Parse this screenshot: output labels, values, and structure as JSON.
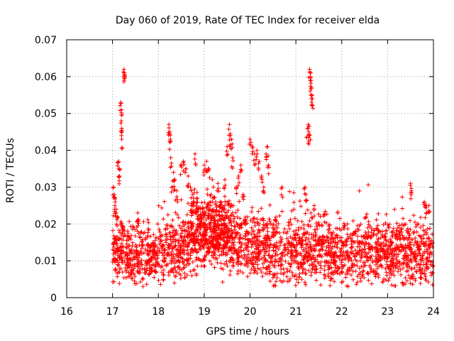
{
  "chart_data": {
    "type": "scatter",
    "title": "Day 060 of 2019, Rate Of TEC Index for receiver elda",
    "xlabel": "GPS time / hours",
    "ylabel": "ROTI / TECUs",
    "xlim": [
      16,
      24
    ],
    "ylim": [
      0,
      0.07
    ],
    "x_ticks": [
      "16",
      "17",
      "18",
      "19",
      "20",
      "21",
      "22",
      "23",
      "24"
    ],
    "y_ticks": [
      "0",
      "0.01",
      "0.02",
      "0.03",
      "0.04",
      "0.05",
      "0.06",
      "0.07"
    ],
    "grid": true,
    "marker": "+",
    "color": "#ff0000",
    "series": [
      {
        "name": "ROTI",
        "baseline_profile": [
          [
            17.0,
            0.013
          ],
          [
            17.3,
            0.012
          ],
          [
            17.5,
            0.011
          ],
          [
            17.8,
            0.011
          ],
          [
            18.0,
            0.012
          ],
          [
            18.3,
            0.013
          ],
          [
            18.6,
            0.014
          ],
          [
            18.9,
            0.016
          ],
          [
            19.1,
            0.017
          ],
          [
            19.4,
            0.016
          ],
          [
            19.7,
            0.015
          ],
          [
            20.0,
            0.014
          ],
          [
            20.4,
            0.013
          ],
          [
            20.8,
            0.012
          ],
          [
            21.2,
            0.013
          ],
          [
            21.6,
            0.013
          ],
          [
            22.0,
            0.012
          ],
          [
            22.4,
            0.012
          ],
          [
            22.8,
            0.013
          ],
          [
            23.2,
            0.012
          ],
          [
            23.6,
            0.012
          ],
          [
            24.0,
            0.011
          ]
        ],
        "spread": 0.006,
        "spikes": [
          [
            17.02,
            0.03
          ],
          [
            17.04,
            0.028
          ],
          [
            17.06,
            0.026
          ],
          [
            17.08,
            0.024
          ],
          [
            17.1,
            0.022
          ],
          [
            17.13,
            0.037
          ],
          [
            17.14,
            0.035
          ],
          [
            17.15,
            0.033
          ],
          [
            17.18,
            0.053
          ],
          [
            17.2,
            0.051
          ],
          [
            17.19,
            0.048
          ],
          [
            17.2,
            0.046
          ],
          [
            17.2,
            0.043
          ],
          [
            17.25,
            0.062
          ],
          [
            17.26,
            0.061
          ],
          [
            17.26,
            0.06
          ],
          [
            17.55,
            0.023
          ],
          [
            17.55,
            0.021
          ],
          [
            18.23,
            0.047
          ],
          [
            18.25,
            0.045
          ],
          [
            18.26,
            0.043
          ],
          [
            18.27,
            0.038
          ],
          [
            18.3,
            0.03
          ],
          [
            18.33,
            0.034
          ],
          [
            18.36,
            0.032
          ],
          [
            18.4,
            0.029
          ],
          [
            18.5,
            0.036
          ],
          [
            18.55,
            0.037
          ],
          [
            18.6,
            0.035
          ],
          [
            18.65,
            0.033
          ],
          [
            18.7,
            0.03
          ],
          [
            18.75,
            0.028
          ],
          [
            18.8,
            0.039
          ],
          [
            18.85,
            0.027
          ],
          [
            19.0,
            0.036
          ],
          [
            19.05,
            0.037
          ],
          [
            19.1,
            0.035
          ],
          [
            19.15,
            0.028
          ],
          [
            19.2,
            0.03
          ],
          [
            19.25,
            0.026
          ],
          [
            19.3,
            0.031
          ],
          [
            19.35,
            0.026
          ],
          [
            19.45,
            0.032
          ],
          [
            19.5,
            0.041
          ],
          [
            19.55,
            0.047
          ],
          [
            19.57,
            0.044
          ],
          [
            19.6,
            0.043
          ],
          [
            19.62,
            0.038
          ],
          [
            19.7,
            0.03
          ],
          [
            19.75,
            0.033
          ],
          [
            19.8,
            0.036
          ],
          [
            19.85,
            0.028
          ],
          [
            20.0,
            0.043
          ],
          [
            20.05,
            0.041
          ],
          [
            20.1,
            0.039
          ],
          [
            20.15,
            0.04
          ],
          [
            20.2,
            0.037
          ],
          [
            20.25,
            0.033
          ],
          [
            20.3,
            0.03
          ],
          [
            20.35,
            0.039
          ],
          [
            20.38,
            0.041
          ],
          [
            20.4,
            0.036
          ],
          [
            20.7,
            0.03
          ],
          [
            21.2,
            0.03
          ],
          [
            21.22,
            0.028
          ],
          [
            21.25,
            0.046
          ],
          [
            21.27,
            0.047
          ],
          [
            21.28,
            0.045
          ],
          [
            21.3,
            0.044
          ],
          [
            21.3,
            0.062
          ],
          [
            21.32,
            0.061
          ],
          [
            21.33,
            0.059
          ],
          [
            21.34,
            0.057
          ],
          [
            21.35,
            0.055
          ],
          [
            21.36,
            0.054
          ],
          [
            21.4,
            0.025
          ],
          [
            23.5,
            0.031
          ],
          [
            23.52,
            0.029
          ],
          [
            23.8,
            0.026
          ],
          [
            23.85,
            0.025
          ],
          [
            23.9,
            0.025
          ]
        ]
      }
    ]
  }
}
